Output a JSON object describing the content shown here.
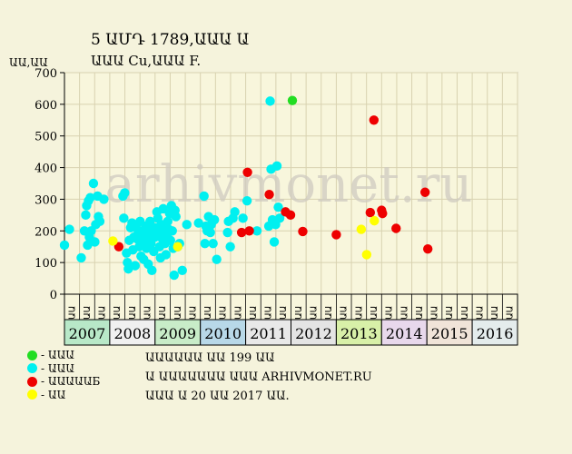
{
  "header": {
    "title_line1": "5 ԱՄԴ 1789,ԱԱԱ Ա",
    "title_line2": "ԱԱԱ Cu,ԱԱԱ F.",
    "y_unit": "ԱԱ,ԱԱ"
  },
  "watermark": "arhivmonet.ru",
  "legend": [
    {
      "label": "- ԱԱԱ",
      "color": "#22dd22"
    },
    {
      "label": "- ԱԱԱ",
      "color": "#00f0f0"
    },
    {
      "label": "- ԱԱԱԱԱБ",
      "color": "#ee0000"
    },
    {
      "label": "- ԱԱ",
      "color": "#ffff00"
    }
  ],
  "notes": [
    "ԱԱԱԱԱԱ ԱԱ 199 ԱԱ",
    "Ա ԱԱԱԱԱԱԱ ԱԱԱ ARHIVMONET.RU",
    "ԱԱԱ Ա 20 ԱԱ 2017 ԱԱ."
  ],
  "chart_data": {
    "type": "scatter",
    "xlabel": "",
    "ylabel": "ԱԱ,ԱԱ",
    "ylim": [
      0,
      700
    ],
    "yticks": [
      0,
      100,
      200,
      300,
      400,
      500,
      600,
      700
    ],
    "grid": true,
    "years": [
      {
        "label": "2007",
        "color": "#b8e8c8"
      },
      {
        "label": "2008",
        "color": "#f0f0f0"
      },
      {
        "label": "2009",
        "color": "#c8ecc8"
      },
      {
        "label": "2010",
        "color": "#b8d8e8"
      },
      {
        "label": "2011",
        "color": "#e8e8e8"
      },
      {
        "label": "2012",
        "color": "#e4e4e4"
      },
      {
        "label": "2013",
        "color": "#d8f0a8"
      },
      {
        "label": "2014",
        "color": "#e8d8ec"
      },
      {
        "label": "2015",
        "color": "#f0e4d8"
      },
      {
        "label": "2016",
        "color": "#e4ecec"
      }
    ],
    "quarter_labels": [
      "ԱԱ",
      "ԱԱ",
      "ԱԱ",
      "ԱԱ",
      "ԱԱ",
      "ԱԱ",
      "ԱԱ",
      "ԱԱ",
      "ԱԱ",
      "ԱԱ",
      "ԱԱ",
      "ԱԱ",
      "ԱԱ",
      "ԱԱ",
      "ԱԱ",
      "ԱԱ",
      "ԱԱ",
      "ԱԱ",
      "ԱԱ",
      "ԱԱ",
      "ԱԱ",
      "ԱԱ",
      "ԱԱ",
      "ԱԱ",
      "ԱԱ",
      "ԱԱ",
      "ԱԱ",
      "ԱԱ",
      "ԱԱ",
      "ԱԱ"
    ],
    "series": [
      {
        "color": "#22dd22",
        "points": [
          [
            2012.03,
            612
          ]
        ]
      },
      {
        "color": "#00f0f0",
        "points": [
          [
            2007.0,
            155
          ],
          [
            2007.11,
            205
          ],
          [
            2007.37,
            115
          ],
          [
            2007.44,
            200
          ],
          [
            2007.47,
            250
          ],
          [
            2007.49,
            280
          ],
          [
            2007.51,
            155
          ],
          [
            2007.53,
            295
          ],
          [
            2007.55,
            180
          ],
          [
            2007.57,
            305
          ],
          [
            2007.59,
            200
          ],
          [
            2007.64,
            350
          ],
          [
            2007.67,
            165
          ],
          [
            2007.69,
            220
          ],
          [
            2007.73,
            310
          ],
          [
            2007.75,
            245
          ],
          [
            2007.78,
            230
          ],
          [
            2007.87,
            300
          ],
          [
            2008.29,
            310
          ],
          [
            2008.33,
            320
          ],
          [
            2008.31,
            240
          ],
          [
            2008.37,
            130
          ],
          [
            2008.39,
            100
          ],
          [
            2008.41,
            80
          ],
          [
            2008.43,
            170
          ],
          [
            2008.46,
            210
          ],
          [
            2008.49,
            225
          ],
          [
            2008.51,
            140
          ],
          [
            2008.53,
            180
          ],
          [
            2008.56,
            90
          ],
          [
            2008.58,
            215
          ],
          [
            2008.6,
            175
          ],
          [
            2008.63,
            195
          ],
          [
            2008.65,
            150
          ],
          [
            2008.67,
            230
          ],
          [
            2008.69,
            120
          ],
          [
            2008.71,
            165
          ],
          [
            2008.73,
            200
          ],
          [
            2008.75,
            110
          ],
          [
            2008.77,
            185
          ],
          [
            2008.79,
            215
          ],
          [
            2008.81,
            145
          ],
          [
            2008.83,
            170
          ],
          [
            2008.85,
            95
          ],
          [
            2008.87,
            205
          ],
          [
            2008.89,
            230
          ],
          [
            2008.91,
            160
          ],
          [
            2008.93,
            75
          ],
          [
            2008.95,
            190
          ],
          [
            2008.97,
            135
          ],
          [
            2009.0,
            180
          ],
          [
            2009.02,
            210
          ],
          [
            2009.04,
            260
          ],
          [
            2009.06,
            240
          ],
          [
            2009.08,
            200
          ],
          [
            2009.1,
            150
          ],
          [
            2009.12,
            115
          ],
          [
            2009.14,
            220
          ],
          [
            2009.16,
            175
          ],
          [
            2009.18,
            270
          ],
          [
            2009.2,
            195
          ],
          [
            2009.22,
            160
          ],
          [
            2009.24,
            125
          ],
          [
            2009.26,
            185
          ],
          [
            2009.28,
            230
          ],
          [
            2009.3,
            205
          ],
          [
            2009.32,
            255
          ],
          [
            2009.34,
            170
          ],
          [
            2009.36,
            280
          ],
          [
            2009.38,
            200
          ],
          [
            2009.4,
            145
          ],
          [
            2009.42,
            60
          ],
          [
            2009.44,
            265
          ],
          [
            2009.46,
            245
          ],
          [
            2009.5,
            150
          ],
          [
            2009.54,
            160
          ],
          [
            2009.6,
            75
          ],
          [
            2009.7,
            220
          ],
          [
            2009.96,
            225
          ],
          [
            2010.08,
            310
          ],
          [
            2010.1,
            160
          ],
          [
            2010.12,
            215
          ],
          [
            2010.15,
            200
          ],
          [
            2010.18,
            245
          ],
          [
            2010.22,
            195
          ],
          [
            2010.24,
            220
          ],
          [
            2010.28,
            160
          ],
          [
            2010.31,
            235
          ],
          [
            2010.36,
            110
          ],
          [
            2010.6,
            195
          ],
          [
            2010.62,
            230
          ],
          [
            2010.66,
            150
          ],
          [
            2010.72,
            240
          ],
          [
            2010.76,
            260
          ],
          [
            2010.94,
            240
          ],
          [
            2011.03,
            295
          ],
          [
            2011.25,
            200
          ],
          [
            2011.51,
            215
          ],
          [
            2011.54,
            610
          ],
          [
            2011.56,
            395
          ],
          [
            2011.59,
            235
          ],
          [
            2011.63,
            165
          ],
          [
            2011.66,
            220
          ],
          [
            2011.69,
            405
          ],
          [
            2011.72,
            275
          ],
          [
            2011.75,
            240
          ]
        ]
      },
      {
        "color": "#ee0000",
        "points": [
          [
            2008.2,
            150
          ],
          [
            2010.91,
            195
          ],
          [
            2011.04,
            385
          ],
          [
            2011.08,
            200
          ],
          [
            2011.52,
            315
          ],
          [
            2011.88,
            260
          ],
          [
            2011.99,
            250
          ],
          [
            2012.26,
            198
          ],
          [
            2013.0,
            188
          ],
          [
            2013.75,
            258
          ],
          [
            2013.83,
            550
          ],
          [
            2014.0,
            265
          ],
          [
            2014.02,
            255
          ],
          [
            2014.32,
            208
          ],
          [
            2014.96,
            322
          ],
          [
            2015.02,
            143
          ]
        ]
      },
      {
        "color": "#ffff00",
        "points": [
          [
            2008.07,
            168
          ],
          [
            2009.5,
            150
          ],
          [
            2013.55,
            205
          ],
          [
            2013.67,
            125
          ],
          [
            2013.84,
            232
          ]
        ]
      }
    ]
  }
}
